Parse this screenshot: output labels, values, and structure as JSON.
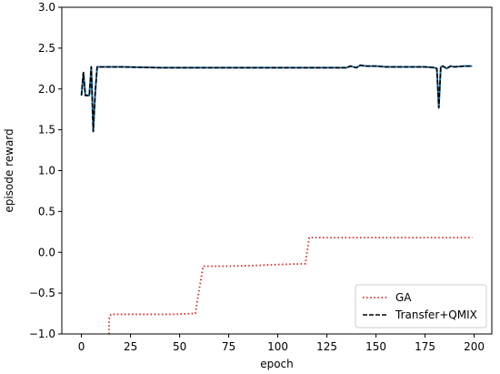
{
  "chart_data": {
    "type": "line",
    "xlabel": "epoch",
    "ylabel": "episode reward",
    "xlim": [
      -10,
      209
    ],
    "ylim": [
      -1.0,
      3.0
    ],
    "xticks": [
      0,
      25,
      50,
      75,
      100,
      125,
      150,
      175,
      200
    ],
    "yticks": [
      -1.0,
      -0.5,
      0.0,
      0.5,
      1.0,
      1.5,
      2.0,
      2.5,
      3.0
    ],
    "ytick_labels": [
      "−1.0",
      "−0.5",
      "0.0",
      "0.5",
      "1.0",
      "1.5",
      "2.0",
      "2.5",
      "3.0"
    ],
    "grid": false,
    "legend_position": "bottom-right",
    "series": [
      {
        "name": "GA",
        "style": "dotted",
        "color": "#d62728",
        "x": [
          14,
          14,
          15,
          30,
          45,
          58,
          60,
          62,
          75,
          90,
          100,
          114,
          115,
          116,
          130,
          150,
          175,
          199
        ],
        "y": [
          -1.0,
          -0.82,
          -0.76,
          -0.76,
          -0.76,
          -0.75,
          -0.45,
          -0.17,
          -0.17,
          -0.16,
          -0.15,
          -0.14,
          0.02,
          0.18,
          0.18,
          0.18,
          0.18,
          0.18
        ]
      },
      {
        "name": "Transfer+QMIX",
        "style": "dashed",
        "color": "#000000",
        "underlay_color": "#1f77b4",
        "x": [
          0,
          1,
          2,
          3,
          4,
          5,
          6,
          7,
          8,
          10,
          20,
          40,
          60,
          80,
          100,
          120,
          135,
          137,
          140,
          142,
          145,
          150,
          155,
          160,
          165,
          170,
          175,
          180,
          181,
          182,
          183,
          184,
          186,
          188,
          190,
          195,
          199
        ],
        "y": [
          1.92,
          2.2,
          1.92,
          1.92,
          1.92,
          2.27,
          1.48,
          1.95,
          2.27,
          2.27,
          2.27,
          2.26,
          2.26,
          2.26,
          2.26,
          2.26,
          2.26,
          2.28,
          2.26,
          2.29,
          2.28,
          2.28,
          2.27,
          2.27,
          2.27,
          2.27,
          2.27,
          2.26,
          2.25,
          1.77,
          2.27,
          2.28,
          2.25,
          2.28,
          2.27,
          2.28,
          2.28
        ]
      }
    ]
  }
}
